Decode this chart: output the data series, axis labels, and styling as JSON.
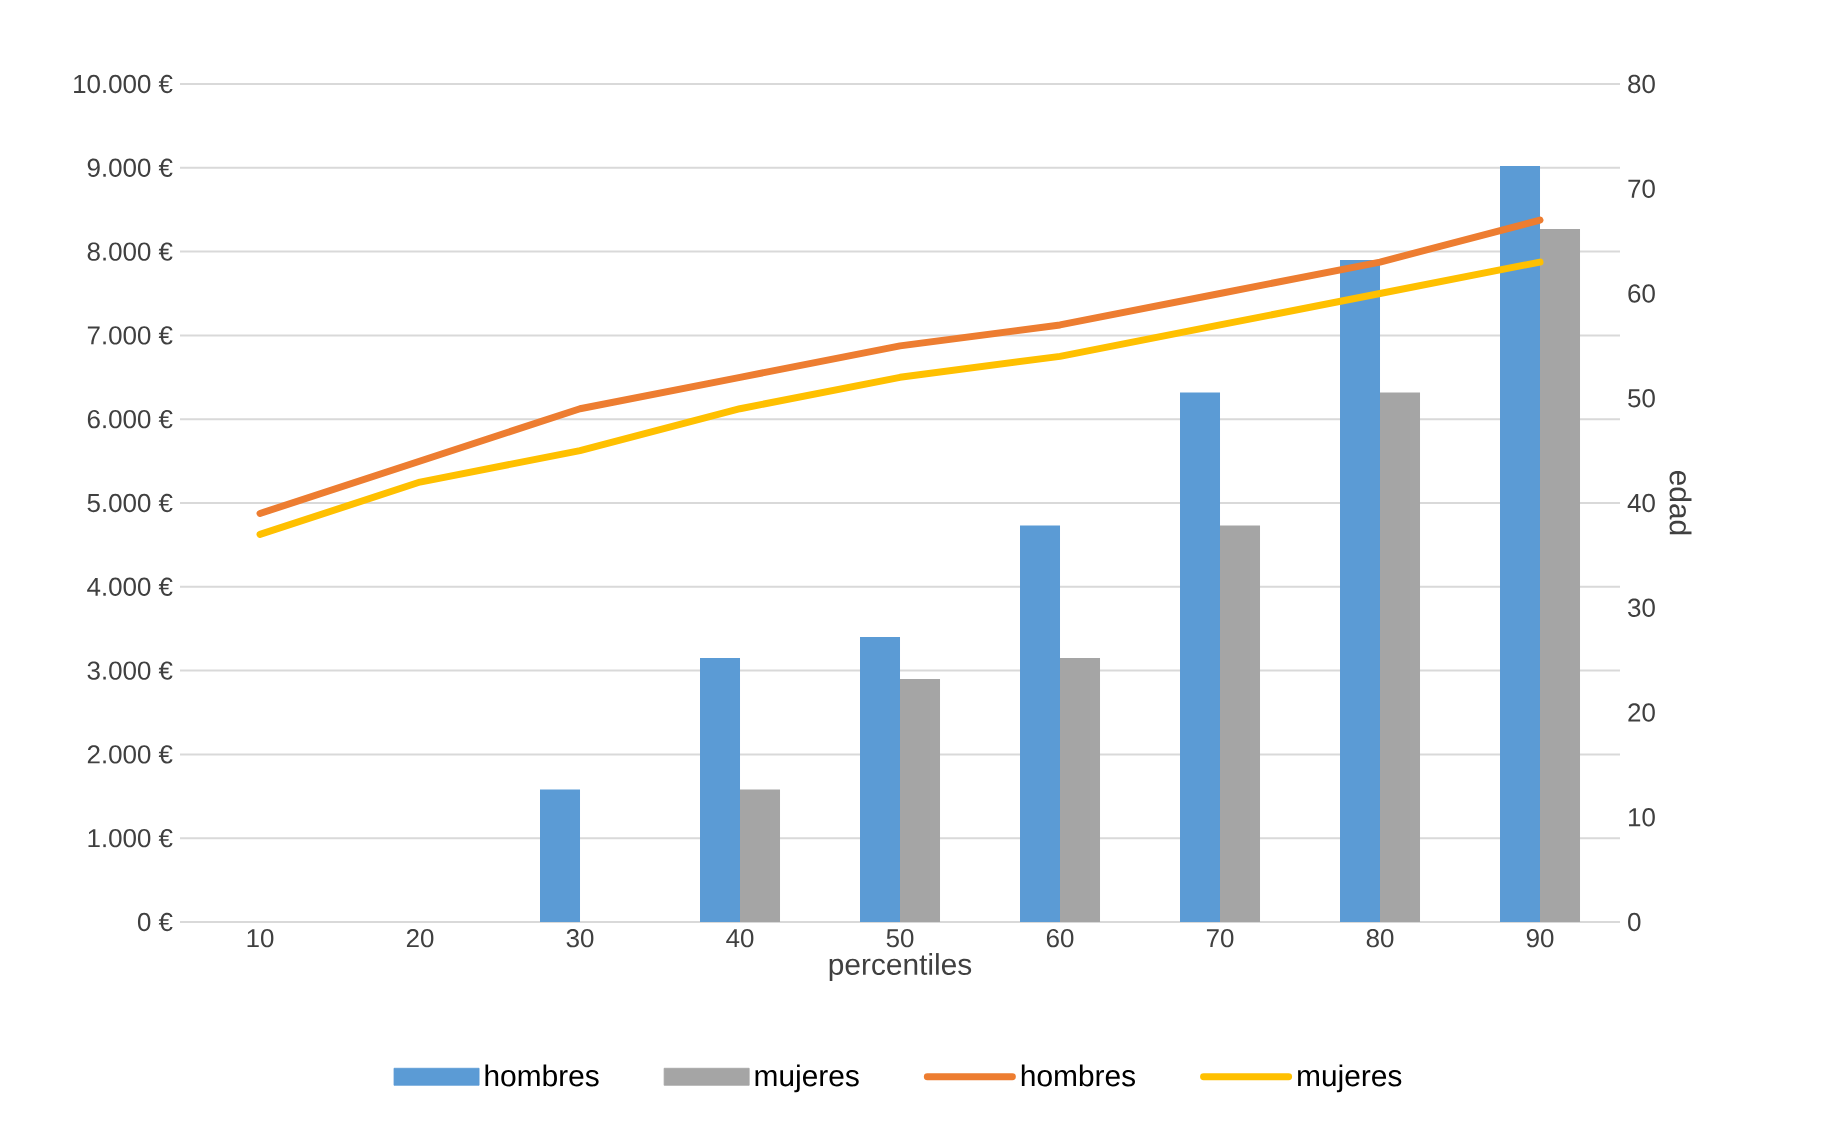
{
  "chart_data": {
    "type": "bar",
    "xlabel": "percentiles",
    "y2label": "edad",
    "categories": [
      "10",
      "20",
      "30",
      "40",
      "50",
      "60",
      "70",
      "80",
      "90"
    ],
    "series": [
      {
        "name": "hombres",
        "color": "#5b9bd5",
        "values": [
          0,
          0,
          1580,
          3150,
          3400,
          4730,
          6320,
          7900,
          9020
        ]
      },
      {
        "name": "mujeres",
        "color": "#a5a5a5",
        "values": [
          0,
          0,
          0,
          1580,
          2900,
          3150,
          4730,
          6320,
          8270
        ]
      },
      {
        "name": "hombres",
        "color": "#ed7d31",
        "type": "line",
        "axis": "y2",
        "values": [
          39,
          44,
          49,
          52,
          55,
          57,
          60,
          63,
          67
        ]
      },
      {
        "name": "mujeres",
        "color": "#ffc000",
        "type": "line",
        "axis": "y2",
        "values": [
          37,
          42,
          45,
          49,
          52,
          54,
          57,
          60,
          63
        ]
      }
    ],
    "ylim": [
      0,
      10000
    ],
    "yticks": [
      {
        "value": 0,
        "label": "0 €"
      },
      {
        "value": 1000,
        "label": "1.000 €"
      },
      {
        "value": 2000,
        "label": "2.000 €"
      },
      {
        "value": 3000,
        "label": "3.000 €"
      },
      {
        "value": 4000,
        "label": "4.000 €"
      },
      {
        "value": 5000,
        "label": "5.000 €"
      },
      {
        "value": 6000,
        "label": "6.000 €"
      },
      {
        "value": 7000,
        "label": "7.000 €"
      },
      {
        "value": 8000,
        "label": "8.000 €"
      },
      {
        "value": 9000,
        "label": "9.000 €"
      },
      {
        "value": 10000,
        "label": "10.000 €"
      }
    ],
    "y2lim": [
      0,
      80
    ],
    "y2ticks": [
      0,
      10,
      20,
      30,
      40,
      50,
      60,
      70,
      80
    ],
    "grid": "y",
    "legend": "bottom",
    "marker": "none",
    "line_style": "solid"
  }
}
